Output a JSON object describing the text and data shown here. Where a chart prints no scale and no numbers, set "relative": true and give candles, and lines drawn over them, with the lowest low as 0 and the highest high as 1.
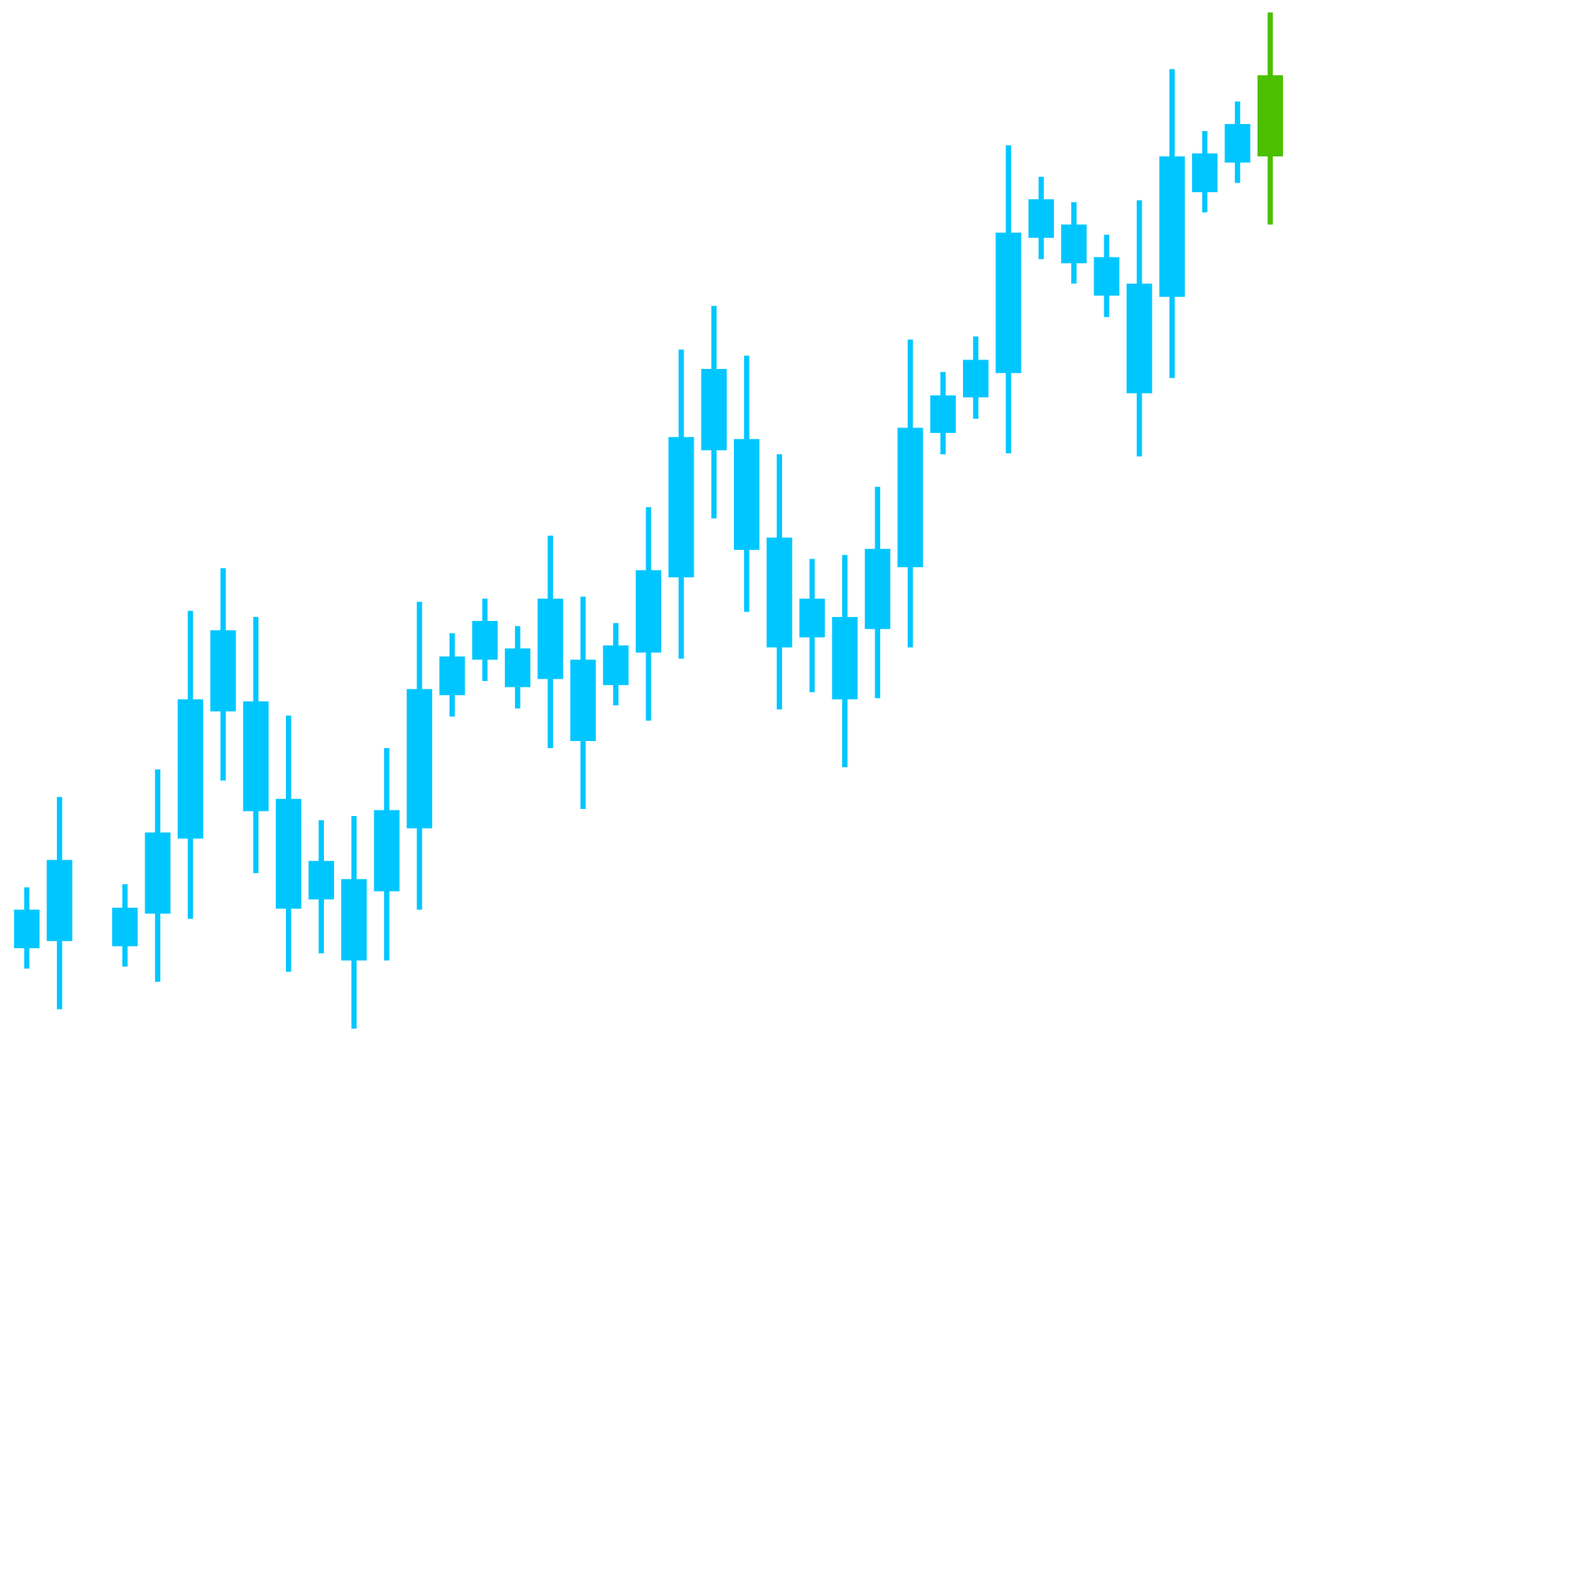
{
  "chart_data": {
    "type": "candlestick",
    "relative": true,
    "categories": [
      null,
      null,
      null,
      null,
      null,
      null,
      null,
      null,
      null,
      null,
      null,
      null,
      null,
      null,
      null,
      null,
      null,
      null,
      null,
      null,
      null,
      null,
      null,
      null,
      null,
      null,
      null,
      null,
      null,
      null,
      null,
      null,
      null,
      null,
      null,
      null,
      null,
      null,
      null
    ],
    "ohlc": [
      [
        0.117,
        0.139,
        0.059,
        0.079
      ],
      [
        0.166,
        0.228,
        0.019,
        0.086
      ],
      null,
      [
        0.119,
        0.142,
        0.061,
        0.081
      ],
      [
        0.193,
        0.255,
        0.046,
        0.113
      ],
      [
        0.324,
        0.411,
        0.108,
        0.187
      ],
      [
        0.392,
        0.453,
        0.244,
        0.312
      ],
      [
        0.322,
        0.405,
        0.153,
        0.214
      ],
      [
        0.226,
        0.308,
        0.056,
        0.118
      ],
      [
        0.165,
        0.205,
        0.074,
        0.127
      ],
      [
        0.147,
        0.209,
        0.0,
        0.067
      ],
      [
        0.215,
        0.276,
        0.067,
        0.135
      ],
      [
        0.334,
        0.42,
        0.117,
        0.197
      ],
      [
        0.366,
        0.389,
        0.307,
        0.328
      ],
      [
        0.401,
        0.423,
        0.342,
        0.363
      ],
      [
        0.374,
        0.396,
        0.315,
        0.336
      ],
      [
        0.423,
        0.485,
        0.276,
        0.344
      ],
      [
        0.363,
        0.425,
        0.216,
        0.283
      ],
      [
        0.377,
        0.399,
        0.318,
        0.338
      ],
      [
        0.451,
        0.513,
        0.303,
        0.37
      ],
      [
        0.582,
        0.668,
        0.364,
        0.444
      ],
      [
        0.649,
        0.711,
        0.502,
        0.569
      ],
      [
        0.58,
        0.662,
        0.41,
        0.471
      ],
      [
        0.483,
        0.565,
        0.314,
        0.375
      ],
      [
        0.423,
        0.462,
        0.331,
        0.385
      ],
      [
        0.405,
        0.466,
        0.257,
        0.324
      ],
      [
        0.472,
        0.533,
        0.325,
        0.393
      ],
      [
        0.591,
        0.678,
        0.375,
        0.454
      ],
      [
        0.623,
        0.646,
        0.565,
        0.586
      ],
      [
        0.658,
        0.681,
        0.6,
        0.621
      ],
      [
        0.783,
        0.869,
        0.566,
        0.645
      ],
      [
        0.816,
        0.838,
        0.757,
        0.778
      ],
      [
        0.791,
        0.813,
        0.733,
        0.753
      ],
      [
        0.759,
        0.781,
        0.7,
        0.721
      ],
      [
        0.733,
        0.815,
        0.563,
        0.625
      ],
      [
        0.858,
        0.944,
        0.64,
        0.72
      ],
      [
        0.861,
        0.883,
        0.803,
        0.823
      ],
      [
        0.89,
        0.912,
        0.832,
        0.852
      ],
      [
        0.858,
        1.0,
        0.791,
        0.938
      ]
    ],
    "colors": [
      "#00c6ff",
      "#00c6ff",
      null,
      "#00c6ff",
      "#00c6ff",
      "#00c6ff",
      "#00c6ff",
      "#00c6ff",
      "#00c6ff",
      "#00c6ff",
      "#00c6ff",
      "#00c6ff",
      "#00c6ff",
      "#00c6ff",
      "#00c6ff",
      "#00c6ff",
      "#00c6ff",
      "#00c6ff",
      "#00c6ff",
      "#00c6ff",
      "#00c6ff",
      "#00c6ff",
      "#00c6ff",
      "#00c6ff",
      "#00c6ff",
      "#00c6ff",
      "#00c6ff",
      "#00c6ff",
      "#00c6ff",
      "#00c6ff",
      "#00c6ff",
      "#00c6ff",
      "#00c6ff",
      "#00c6ff",
      "#00c6ff",
      "#00c6ff",
      "#00c6ff",
      "#00c6ff",
      "#4cbf00"
    ]
  }
}
